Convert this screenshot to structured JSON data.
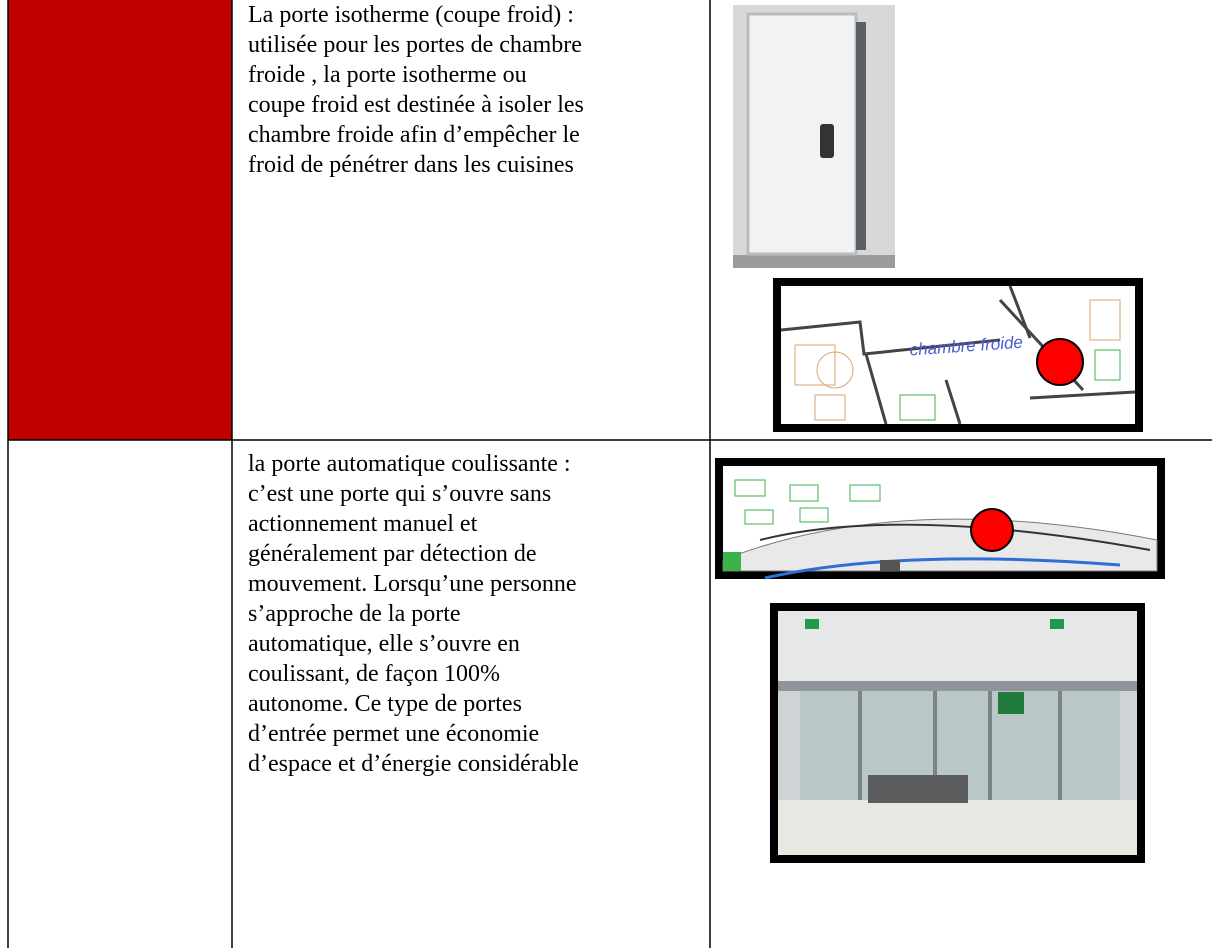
{
  "table": {
    "rows": [
      {
        "lines": [
          "La porte isotherme (coupe froid) :",
          "utilisée pour les portes de chambre",
          "froide , la porte isotherme ou",
          "coupe froid est destinée à isoler les",
          "chambre froide afin d’empêcher le",
          "froid de pénétrer dans les cuisines"
        ],
        "plan_label": "chambre froide"
      },
      {
        "lines": [
          "la porte automatique coulissante :",
          "c’est une porte qui s’ouvre sans",
          "actionnement manuel et",
          "généralement par détection de",
          "mouvement. Lorsqu’une personne",
          "s’approche de la porte",
          "automatique, elle s’ouvre en",
          "coulissant, de façon 100%",
          "autonome. Ce type de portes",
          "d’entrée permet une économie",
          "d’espace et d’énergie considérable"
        ]
      }
    ]
  }
}
